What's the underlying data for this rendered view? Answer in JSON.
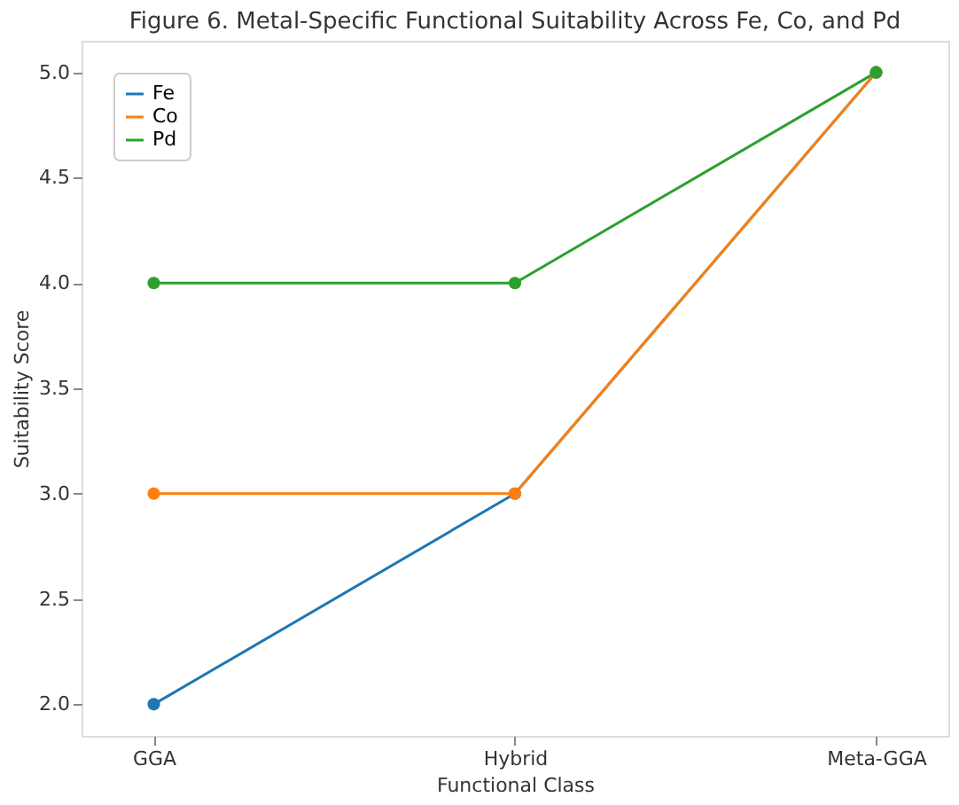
{
  "chart_data": {
    "type": "line",
    "title": "Figure 6. Metal-Specific Functional Suitability Across Fe, Co, and Pd",
    "xlabel": "Functional Class",
    "ylabel": "Suitability Score",
    "categories": [
      "GGA",
      "Hybrid",
      "Meta-GGA"
    ],
    "series": [
      {
        "name": "Fe",
        "color": "#1f77b4",
        "values": [
          2,
          3,
          5
        ]
      },
      {
        "name": "Co",
        "color": "#ff7f0e",
        "values": [
          3,
          3,
          5
        ]
      },
      {
        "name": "Pd",
        "color": "#2ca02c",
        "values": [
          4,
          4,
          5
        ]
      }
    ],
    "ylim": [
      1.85,
      5.15
    ],
    "yticks": [
      {
        "value": 2,
        "label": "2.0"
      },
      {
        "value": 2.5,
        "label": "2.5"
      },
      {
        "value": 3,
        "label": "3.0"
      },
      {
        "value": 3.5,
        "label": "3.5"
      },
      {
        "value": 4,
        "label": "4.0"
      },
      {
        "value": 4.5,
        "label": "4.5"
      },
      {
        "value": 5,
        "label": "5.0"
      }
    ],
    "legend": "top left",
    "grid": false,
    "marker": "circle",
    "line_style": "solid"
  }
}
